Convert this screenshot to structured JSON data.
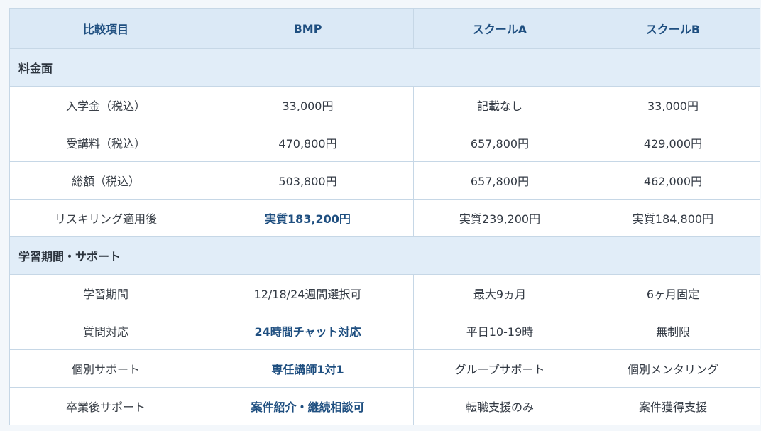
{
  "header": [
    "比較項目",
    "BMP",
    "スクールA",
    "スクールB"
  ],
  "sections": [
    {
      "title": "料金面",
      "rows": [
        {
          "label": "入学金（税込）",
          "bmp": "33,000円",
          "a": "記載なし",
          "b": "33,000円"
        },
        {
          "label": "受講料（税込）",
          "bmp": "470,800円",
          "a": "657,800円",
          "b": "429,000円"
        },
        {
          "label": "総額（税込）",
          "bmp": "503,800円",
          "a": "657,800円",
          "b": "462,000円"
        },
        {
          "label": "リスキリング適用後",
          "bmp": "実質183,200円",
          "a": "実質239,200円",
          "b": "実質184,800円"
        }
      ]
    },
    {
      "title": "学習期間・サポート",
      "rows": [
        {
          "label": "学習期間",
          "bmp": "12/18/24週間選択可",
          "a": "最大9ヵ月",
          "b": "6ヶ月固定"
        },
        {
          "label": "質問対応",
          "bmp": "24時間チャット対応",
          "a": "平日10-19時",
          "b": "無制限"
        },
        {
          "label": "個別サポート",
          "bmp": "専任講師1対1",
          "a": "グループサポート",
          "b": "個別メンタリング"
        },
        {
          "label": "卒業後サポート",
          "bmp": "案件紹介・継続相談可",
          "a": "転職支援のみ",
          "b": "案件獲得支援"
        }
      ]
    }
  ]
}
